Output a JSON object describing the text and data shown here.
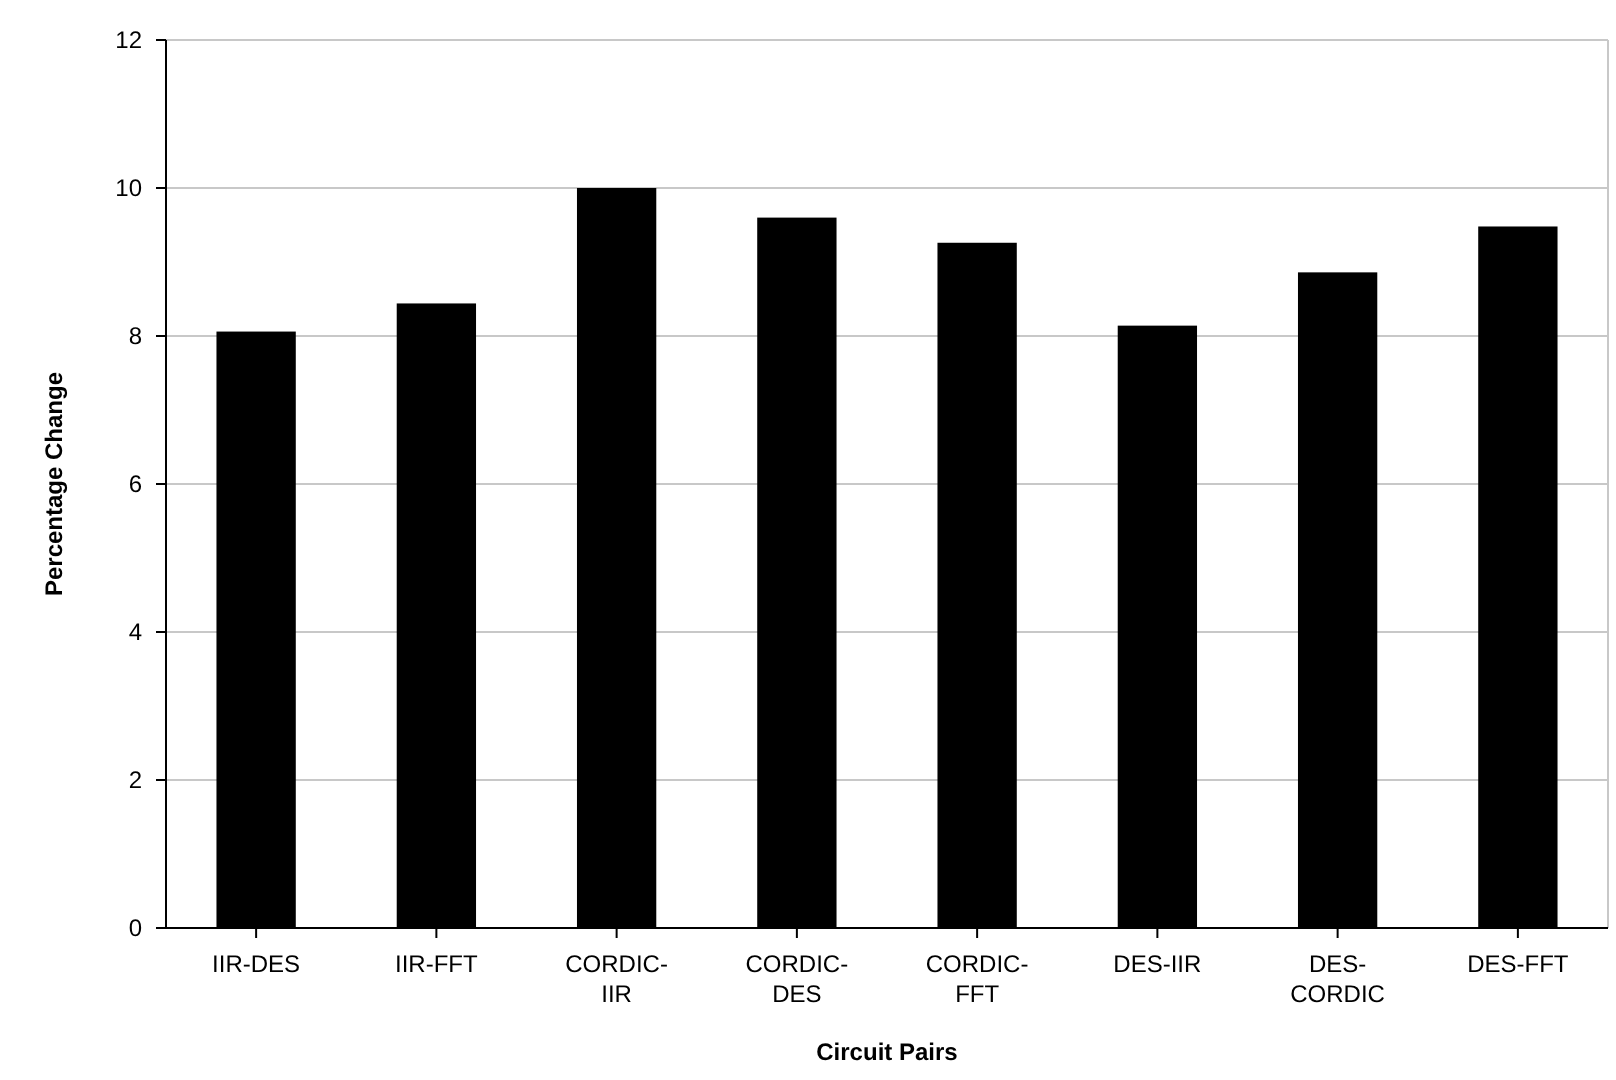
{
  "chart_data": {
    "type": "bar",
    "xlabel": "Circuit Pairs",
    "ylabel": "Percentage Change",
    "categories": [
      "IIR-DES",
      "IIR-FFT",
      "CORDIC-IIR",
      "CORDIC-DES",
      "CORDIC-FFT",
      "DES-IIR",
      "DES-CORDIC",
      "DES-FFT"
    ],
    "values": [
      8.06,
      8.44,
      10.0,
      9.6,
      9.26,
      8.14,
      8.86,
      9.48
    ],
    "color": "#000000",
    "ylim": [
      0,
      12
    ],
    "yticks": [
      0,
      2,
      4,
      6,
      8,
      10,
      12
    ],
    "grid": "y"
  }
}
